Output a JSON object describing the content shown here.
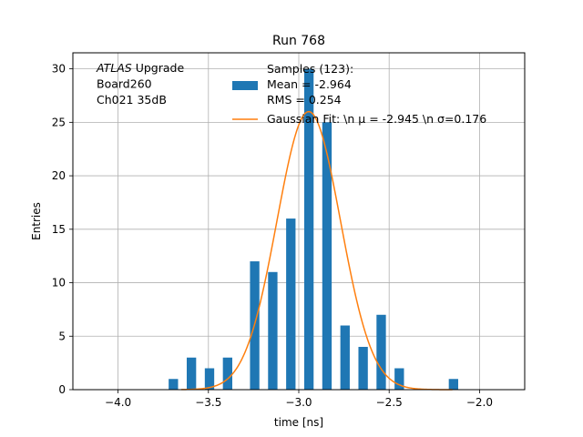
{
  "chart_data": {
    "type": "bar",
    "title": "Run 768",
    "xlabel": "time [ns]",
    "ylabel": "Entries",
    "xlim": [
      -4.25,
      -1.75
    ],
    "ylim": [
      0,
      31.5
    ],
    "xticks": [
      -4.0,
      -3.5,
      -3.0,
      -2.5,
      -2.0
    ],
    "xtick_labels": [
      "−4.0",
      "−3.5",
      "−3.0",
      "−2.5",
      "−2.0"
    ],
    "yticks": [
      0,
      5,
      10,
      15,
      20,
      25,
      30
    ],
    "ytick_labels": [
      "0",
      "5",
      "10",
      "15",
      "20",
      "25",
      "30"
    ],
    "grid": true,
    "annotation": {
      "lines": [
        [
          {
            "text": "ATLAS",
            "italic": true
          },
          {
            "text": " Upgrade",
            "italic": false
          }
        ],
        [
          {
            "text": " Board260",
            "italic": false
          }
        ],
        [
          {
            "text": " Ch021 35dB",
            "italic": false
          }
        ]
      ]
    },
    "histogram": {
      "name": "Samples (123):",
      "color": "#1f77b4",
      "bin_width": 0.05,
      "bins": [
        {
          "start": -3.72,
          "count": 1
        },
        {
          "start": -3.62,
          "count": 3
        },
        {
          "start": -3.52,
          "count": 2
        },
        {
          "start": -3.42,
          "count": 3
        },
        {
          "start": -3.27,
          "count": 12
        },
        {
          "start": -3.17,
          "count": 11
        },
        {
          "start": -3.07,
          "count": 16
        },
        {
          "start": -2.97,
          "count": 30
        },
        {
          "start": -2.87,
          "count": 25
        },
        {
          "start": -2.77,
          "count": 6
        },
        {
          "start": -2.67,
          "count": 4
        },
        {
          "start": -2.57,
          "count": 7
        },
        {
          "start": -2.47,
          "count": 2
        },
        {
          "start": -2.17,
          "count": 1
        }
      ]
    },
    "fit": {
      "type": "gaussian",
      "color": "#ff7f0e",
      "mu": -2.945,
      "sigma": 0.176,
      "amplitude": 26,
      "x_range": [
        -3.65,
        -2.15
      ]
    },
    "legend": {
      "position": "top-right",
      "entries": [
        {
          "kind": "patch",
          "lines": [
            "Samples (123):",
            " Mean = -2.964",
            " RMS = 0.254"
          ]
        },
        {
          "kind": "line",
          "lines": [
            "Gaussian Fit: \\n μ = -2.945 \\n σ=0.176"
          ]
        }
      ]
    }
  }
}
